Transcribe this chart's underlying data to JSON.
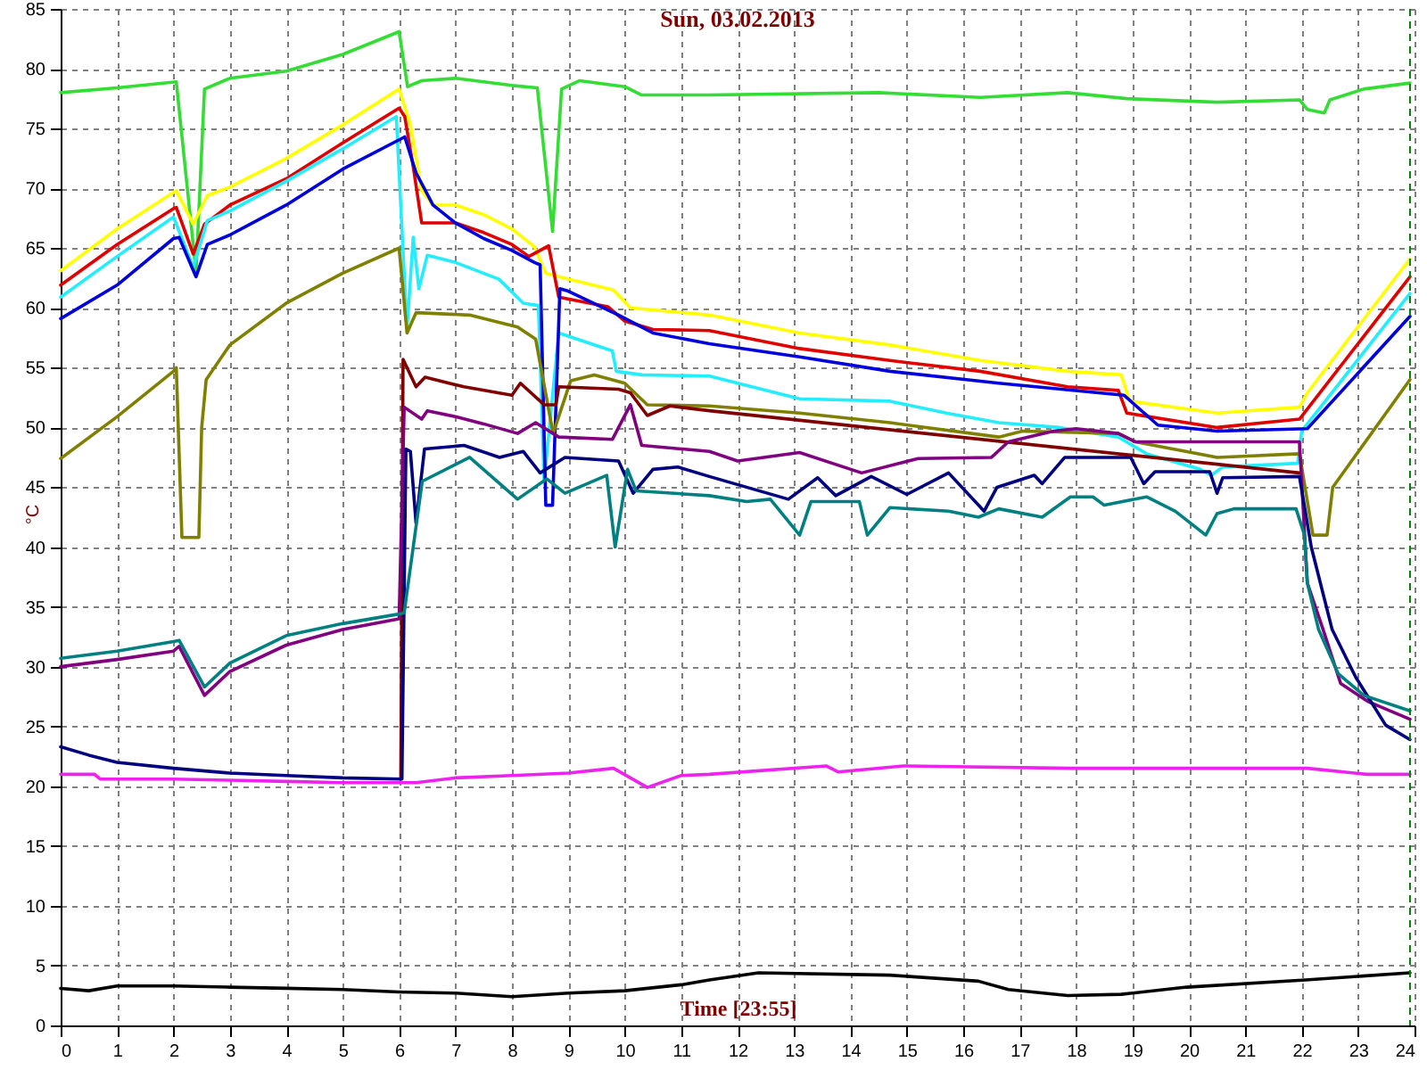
{
  "chart_data": {
    "type": "line",
    "title": "Sun, 03.02.2013",
    "xlabel": "Time [23:55]",
    "ylabel": "°C",
    "xlim": [
      0,
      24
    ],
    "xticks": [
      0,
      1,
      2,
      3,
      4,
      5,
      6,
      7,
      8,
      9,
      10,
      11,
      12,
      13,
      14,
      15,
      16,
      17,
      18,
      19,
      20,
      21,
      22,
      23,
      24
    ],
    "ylim": [
      0,
      85
    ],
    "yticks": [
      0,
      5,
      10,
      15,
      20,
      25,
      30,
      35,
      40,
      45,
      50,
      55,
      60,
      65,
      70,
      75,
      80,
      85
    ],
    "grid": true,
    "ref_lines": [
      {
        "axis": "x",
        "value": 23.92,
        "color": "#008000",
        "line_style": "dashed"
      }
    ],
    "series": [
      {
        "color": "#33dd33",
        "x": [
          0,
          1,
          2.05,
          2.4,
          2.55,
          3,
          4,
          5,
          6.0,
          6.15,
          6.4,
          7,
          8,
          8.45,
          8.72,
          8.88,
          9.2,
          10,
          10.3,
          11.5,
          14.5,
          16.3,
          17.85,
          18.9,
          20.5,
          21.96,
          22.1,
          22.4,
          22.5,
          23.1,
          23.92
        ],
        "values": [
          78.0,
          78.4,
          78.9,
          63.0,
          78.3,
          79.2,
          79.8,
          81.2,
          83.1,
          78.5,
          79.0,
          79.2,
          78.6,
          78.4,
          66.4,
          78.3,
          79.0,
          78.5,
          77.8,
          77.8,
          78.0,
          77.6,
          78.0,
          77.5,
          77.2,
          77.4,
          76.6,
          76.3,
          77.4,
          78.3,
          78.8
        ]
      },
      {
        "color": "#ffff00",
        "x": [
          0,
          1,
          2.05,
          2.35,
          2.6,
          3,
          4,
          5,
          6.0,
          6.2,
          6.4,
          6.6,
          7,
          7.5,
          8,
          8.4,
          8.6,
          9,
          9.8,
          10.1,
          11.5,
          13.1,
          14.7,
          16.3,
          17.85,
          18.8,
          18.95,
          20.5,
          21.96,
          22.1,
          23.92
        ],
        "values": [
          63.1,
          66.6,
          69.8,
          67.0,
          69.4,
          70.1,
          72.5,
          75.3,
          78.3,
          75.3,
          69.8,
          68.6,
          68.6,
          67.8,
          66.6,
          65.1,
          62.9,
          62.4,
          61.5,
          60.0,
          59.4,
          57.9,
          56.9,
          55.6,
          54.7,
          54.4,
          52.2,
          51.2,
          51.7,
          52.9,
          64.1
        ]
      },
      {
        "color": "#e00000",
        "x": [
          0,
          1,
          2,
          2.05,
          2.35,
          2.55,
          3,
          4,
          5,
          6.0,
          6.1,
          6.25,
          6.4,
          7,
          7.5,
          8,
          8.3,
          8.65,
          8.83,
          9.7,
          10.0,
          10.5,
          11.5,
          13.1,
          14.7,
          16.3,
          17.85,
          18.75,
          18.9,
          20.5,
          21.96,
          23.92
        ],
        "values": [
          61.9,
          65.3,
          68.3,
          68.4,
          64.5,
          67.0,
          68.6,
          70.8,
          73.8,
          76.7,
          76.0,
          71.8,
          67.1,
          67.1,
          66.3,
          65.3,
          64.3,
          65.2,
          60.9,
          60.1,
          58.9,
          58.2,
          58.1,
          56.6,
          55.6,
          54.7,
          53.4,
          53.1,
          51.2,
          50.0,
          50.7,
          62.6
        ]
      },
      {
        "color": "#22eeff",
        "x": [
          0,
          1,
          2,
          2.35,
          2.6,
          3,
          4,
          5,
          5.95,
          6.14,
          6.25,
          6.35,
          6.5,
          7,
          7.77,
          8.2,
          8.47,
          8.57,
          8.83,
          9.78,
          9.85,
          10.3,
          11.5,
          13.1,
          14.7,
          15.7,
          16.63,
          17.7,
          18.75,
          19.25,
          20.2,
          20.4,
          20.6,
          21.93,
          22.0,
          23.92
        ],
        "values": [
          60.9,
          64.3,
          67.6,
          63.4,
          67.3,
          68.1,
          70.6,
          73.3,
          76.0,
          58.2,
          65.9,
          61.6,
          64.4,
          63.8,
          62.4,
          60.4,
          60.2,
          45.5,
          57.9,
          56.4,
          54.7,
          54.4,
          54.3,
          52.4,
          52.2,
          51.2,
          50.4,
          50.0,
          49.2,
          47.8,
          46.5,
          46.0,
          46.7,
          47.0,
          49.7,
          61.2
        ]
      },
      {
        "color": "#0000dd",
        "x": [
          0,
          1,
          2,
          2.1,
          2.4,
          2.6,
          3,
          4,
          5,
          6.1,
          6.3,
          6.6,
          7,
          7.5,
          8,
          8.4,
          8.5,
          8.6,
          8.72,
          8.85,
          9.0,
          9.89,
          10.5,
          11.5,
          13.1,
          14.7,
          16.63,
          18.85,
          19.45,
          20.5,
          22.1,
          23.92
        ],
        "values": [
          59.1,
          61.9,
          65.8,
          65.9,
          62.6,
          65.3,
          66.1,
          68.6,
          71.6,
          74.3,
          71.3,
          68.6,
          67.1,
          65.8,
          64.8,
          63.8,
          63.6,
          43.5,
          43.5,
          61.6,
          61.4,
          59.4,
          57.9,
          57.0,
          55.9,
          54.7,
          53.7,
          52.7,
          50.2,
          49.7,
          49.9,
          59.3
        ]
      },
      {
        "color": "#808000",
        "x": [
          0,
          1,
          2,
          2.05,
          2.15,
          2.45,
          2.5,
          2.58,
          3,
          4,
          5,
          6.0,
          6.14,
          6.3,
          7.25,
          8.1,
          8.42,
          8.73,
          9.04,
          9.46,
          10.0,
          10.4,
          11.5,
          13.1,
          14.7,
          16.63,
          17.05,
          18.75,
          19.05,
          20.5,
          21.96,
          22.2,
          22.45,
          22.55,
          23.92
        ],
        "values": [
          47.4,
          50.9,
          54.7,
          55.0,
          40.8,
          40.8,
          50.0,
          54.0,
          56.9,
          60.4,
          62.9,
          65.0,
          57.9,
          59.6,
          59.4,
          58.4,
          57.4,
          49.5,
          53.9,
          54.4,
          53.7,
          51.9,
          51.8,
          51.2,
          50.4,
          49.2,
          49.7,
          49.5,
          48.8,
          47.5,
          47.8,
          41.0,
          41.0,
          45.0,
          54.0
        ]
      },
      {
        "color": "#800000",
        "x": [
          6.03,
          6.07,
          6.3,
          6.46,
          7.15,
          8.0,
          8.15,
          8.57,
          8.78,
          8.83,
          9.89,
          10.1,
          10.4,
          10.8,
          11.5,
          21.96
        ],
        "values": [
          20.7,
          55.7,
          53.4,
          54.2,
          53.4,
          52.7,
          53.7,
          51.9,
          51.9,
          53.4,
          53.2,
          52.9,
          51.0,
          51.8,
          51.4,
          46.2
        ]
      },
      {
        "color": "#800080",
        "x": [
          0,
          1,
          2,
          2.1,
          2.55,
          3,
          4,
          5,
          6.0,
          6.09,
          6.4,
          6.5,
          7,
          7.5,
          8.1,
          8.42,
          8.83,
          9.78,
          10.1,
          10.3,
          11.5,
          12.0,
          13.1,
          14.2,
          15.2,
          16.5,
          16.8,
          17.6,
          18.0,
          18.75,
          19.05,
          21.96,
          22.1,
          22.38,
          22.69,
          23.17,
          23.92
        ],
        "values": [
          30.0,
          30.6,
          31.3,
          31.7,
          27.6,
          29.6,
          31.8,
          33.1,
          34.0,
          51.7,
          50.7,
          51.4,
          50.9,
          50.3,
          49.5,
          50.4,
          49.2,
          49.0,
          51.9,
          48.5,
          48.0,
          47.2,
          47.9,
          46.2,
          47.4,
          47.5,
          48.8,
          49.7,
          49.9,
          49.5,
          48.8,
          48.8,
          37.0,
          33.1,
          28.6,
          27.1,
          25.6
        ]
      },
      {
        "color": "#000080",
        "x": [
          0,
          0.5,
          1,
          2,
          3,
          4,
          5,
          6.05,
          6.12,
          6.2,
          6.3,
          6.45,
          7.15,
          7.78,
          8.2,
          8.5,
          8.94,
          9.89,
          10.15,
          10.5,
          10.94,
          11.5,
          12.9,
          13.42,
          13.74,
          14.37,
          15.0,
          15.74,
          16.37,
          16.6,
          17.26,
          17.4,
          17.8,
          18.97,
          19.2,
          19.4,
          20.37,
          20.5,
          20.6,
          21.96,
          22.17,
          22.54,
          22.96,
          23.49,
          23.92
        ],
        "values": [
          23.3,
          22.6,
          22.0,
          21.5,
          21.1,
          20.9,
          20.7,
          20.6,
          48.2,
          48.0,
          42.0,
          48.2,
          48.5,
          47.5,
          48.0,
          46.2,
          47.5,
          47.2,
          44.5,
          46.5,
          46.7,
          45.9,
          44.0,
          45.8,
          44.3,
          45.9,
          44.4,
          46.2,
          43.0,
          45.0,
          46.0,
          45.3,
          47.5,
          47.5,
          45.3,
          46.3,
          46.3,
          44.5,
          45.8,
          45.9,
          40.0,
          33.1,
          29.1,
          25.1,
          23.9
        ]
      },
      {
        "color": "#008080",
        "x": [
          0,
          1,
          2,
          2.1,
          2.55,
          3,
          4,
          5,
          6.0,
          6.09,
          6.41,
          7.25,
          8.1,
          8.62,
          8.94,
          9.68,
          9.83,
          10.05,
          10.2,
          11.5,
          12.16,
          12.58,
          13.1,
          13.3,
          14.16,
          14.3,
          14.7,
          15.74,
          16.27,
          16.63,
          17.4,
          17.9,
          18.3,
          18.5,
          19.25,
          19.76,
          20.3,
          20.5,
          20.8,
          21.9,
          22.05,
          22.1,
          22.3,
          22.65,
          23.1,
          23.92
        ],
        "values": [
          30.7,
          31.3,
          32.1,
          32.2,
          28.3,
          30.3,
          32.6,
          33.6,
          34.4,
          34.5,
          45.5,
          47.5,
          44.0,
          45.7,
          44.5,
          46.0,
          40.0,
          46.5,
          44.7,
          44.3,
          43.8,
          44.0,
          41.0,
          43.8,
          43.8,
          41.0,
          43.3,
          43.0,
          42.5,
          43.2,
          42.5,
          44.2,
          44.2,
          43.5,
          44.2,
          43.0,
          41.0,
          42.8,
          43.2,
          43.2,
          41.0,
          37.0,
          33.1,
          29.4,
          27.6,
          26.3
        ]
      },
      {
        "color": "#ee22ee",
        "x": [
          0,
          0.6,
          0.7,
          2,
          3,
          4,
          5,
          6,
          6.3,
          7,
          8,
          9,
          9.8,
          10.4,
          11,
          11.5,
          13.57,
          13.78,
          14.94,
          17.9,
          22.1,
          23.15,
          23.92
        ],
        "values": [
          21.0,
          21.0,
          20.6,
          20.6,
          20.5,
          20.4,
          20.3,
          20.3,
          20.3,
          20.7,
          20.9,
          21.1,
          21.5,
          19.9,
          20.9,
          21.0,
          21.7,
          21.2,
          21.7,
          21.5,
          21.5,
          21.0,
          21.0
        ]
      },
      {
        "color": "#000000",
        "x": [
          0,
          0.5,
          1,
          2,
          3,
          4,
          5,
          6,
          7,
          8,
          9,
          10,
          11,
          11.5,
          12.37,
          14.7,
          16.27,
          16.8,
          17.85,
          18.8,
          19.96,
          22.07,
          23.92
        ],
        "values": [
          3.1,
          2.9,
          3.3,
          3.3,
          3.2,
          3.1,
          3.0,
          2.8,
          2.7,
          2.4,
          2.7,
          2.9,
          3.4,
          3.8,
          4.4,
          4.2,
          3.7,
          3.0,
          2.5,
          2.6,
          3.2,
          3.8,
          4.4
        ]
      }
    ]
  }
}
